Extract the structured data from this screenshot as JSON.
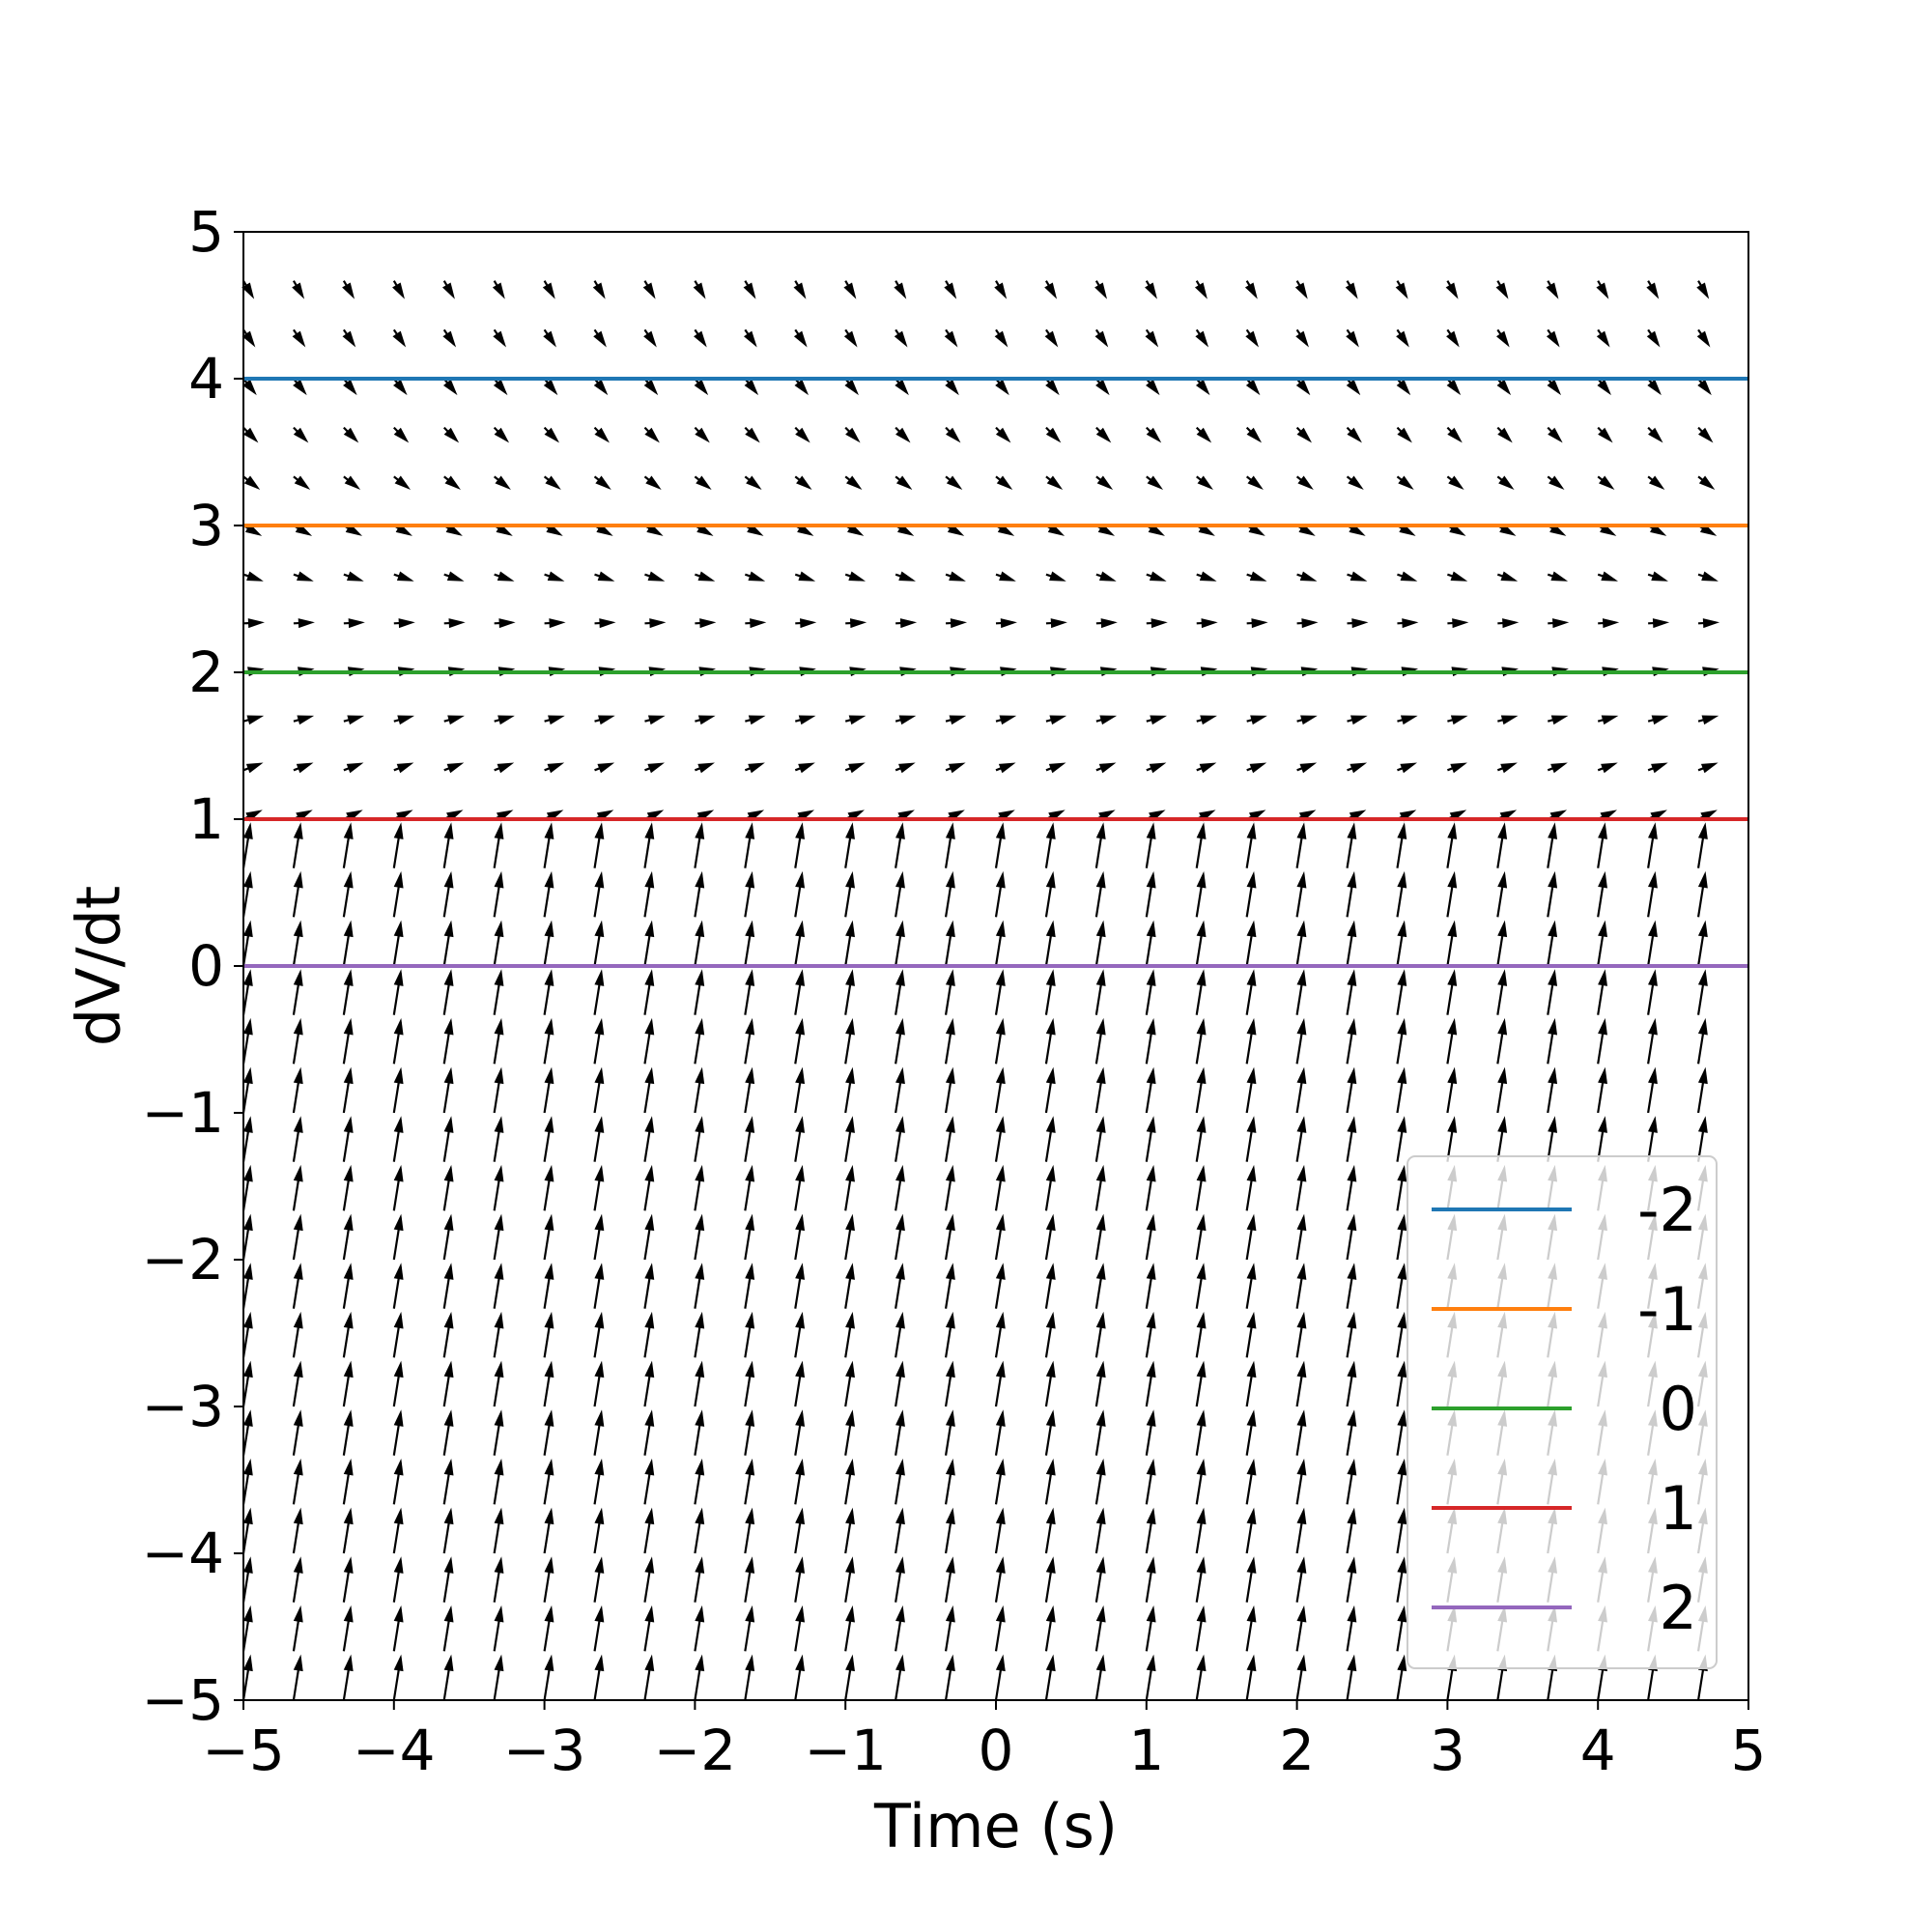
{
  "chart_data": {
    "type": "line",
    "title": "",
    "xlabel": "Time (s)",
    "ylabel": "dV/dt",
    "xlim": [
      -5,
      5
    ],
    "ylim": [
      -5,
      5
    ],
    "xticks": [
      -5,
      -4,
      -3,
      -2,
      -1,
      0,
      1,
      2,
      3,
      4,
      5
    ],
    "yticks": [
      -5,
      -4,
      -3,
      -2,
      -1,
      0,
      1,
      2,
      3,
      4,
      5
    ],
    "xtick_labels": [
      "−5",
      "−4",
      "−3",
      "−2",
      "−1",
      "0",
      "1",
      "2",
      "3",
      "4",
      "5"
    ],
    "ytick_labels": [
      "−5",
      "−4",
      "−3",
      "−2",
      "−1",
      "0",
      "1",
      "2",
      "3",
      "4",
      "5"
    ],
    "grid": false,
    "legend_position": "lower-right",
    "series": [
      {
        "name": "-2",
        "color": "#1f77b4",
        "x": [
          -5,
          5
        ],
        "y": [
          4,
          4
        ]
      },
      {
        "name": "-1",
        "color": "#ff7f0e",
        "x": [
          -5,
          5
        ],
        "y": [
          3,
          3
        ]
      },
      {
        "name": "0",
        "color": "#2ca02c",
        "x": [
          -5,
          5
        ],
        "y": [
          2,
          2
        ]
      },
      {
        "name": "1",
        "color": "#d62728",
        "x": [
          -5,
          5
        ],
        "y": [
          1,
          1
        ]
      },
      {
        "name": "2",
        "color": "#9467bd",
        "x": [
          -5,
          5
        ],
        "y": [
          0,
          0
        ]
      }
    ],
    "quiver": {
      "color": "#000000",
      "x_range": [
        -5,
        5
      ],
      "y_range": [
        -5,
        5
      ],
      "x_count": 30,
      "y_count": 30,
      "description_of_field": "slope field dy/dt"
    }
  }
}
